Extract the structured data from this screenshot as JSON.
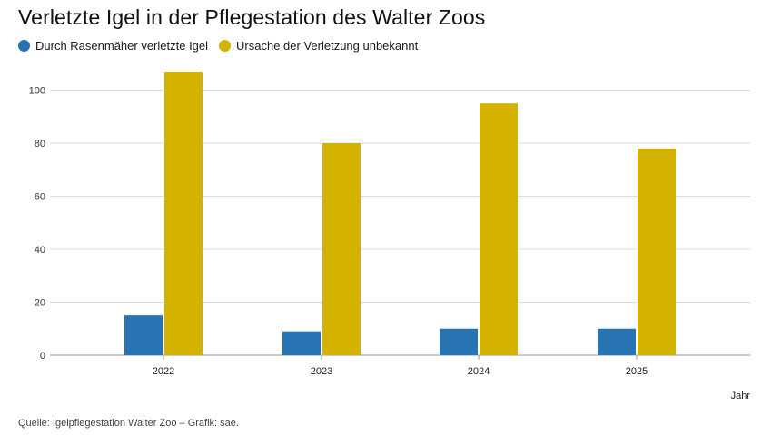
{
  "title": "Verletzte Igel in der Pflegestation des Walter Zoos",
  "source": "Quelle: Igelpflegestation Walter Zoo – Grafik: sae.",
  "colors": {
    "series1": "#2874b2",
    "series2": "#d4b200",
    "grid": "#dddddd",
    "axis": "#999999"
  },
  "chart_data": {
    "type": "bar",
    "xlabel": "Jahr",
    "ylabel": "",
    "ylim": [
      0,
      100
    ],
    "yticks": [
      "0",
      "20",
      "40",
      "60",
      "80",
      "100"
    ],
    "categories": [
      "2022",
      "2023",
      "2024",
      "2025"
    ],
    "series": [
      {
        "name": "Durch Rasenmäher verletzte Igel",
        "values": [
          15,
          9,
          10,
          10
        ]
      },
      {
        "name": "Ursache der Verletzung unbekannt",
        "values": [
          107,
          80,
          95,
          78
        ]
      }
    ],
    "legend": "top-left",
    "grid": true
  }
}
